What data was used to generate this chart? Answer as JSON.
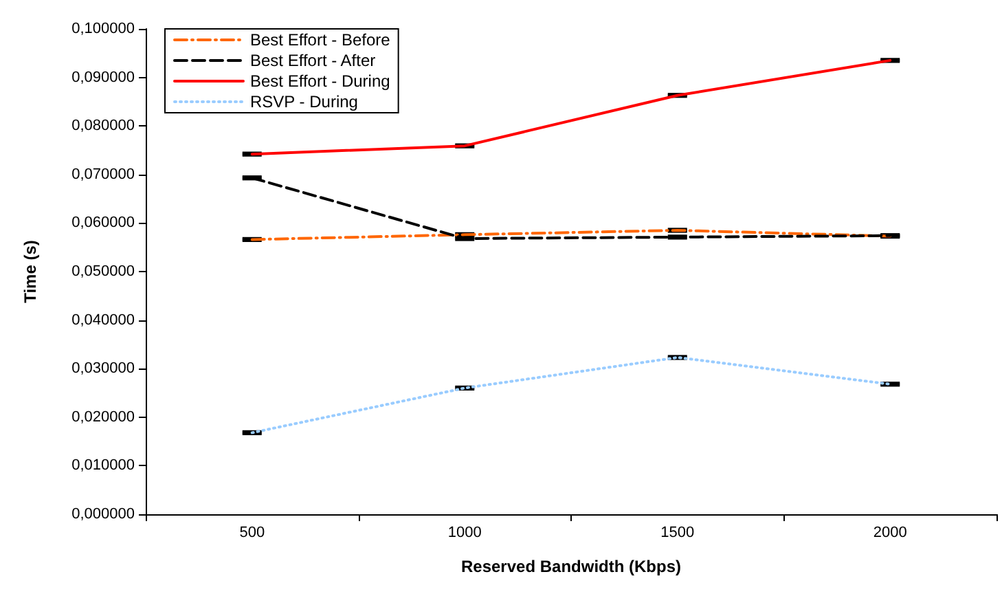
{
  "chart_data": {
    "type": "line",
    "xlabel": "Reserved Bandwidth (Kbps)",
    "ylabel": "Time (s)",
    "categories": [
      "500",
      "1000",
      "1500",
      "2000"
    ],
    "series": [
      {
        "name": "Best Effort - Before",
        "color": "#ff6600",
        "line_style": "dashdot",
        "values": [
          0.0566,
          0.0576,
          0.0585,
          0.0573
        ],
        "errors": [
          0.0003,
          0.0003,
          0.0003,
          0.0003
        ]
      },
      {
        "name": "Best Effort - After",
        "color": "#000000",
        "line_style": "dashed",
        "values": [
          0.0693,
          0.0568,
          0.0571,
          0.0574
        ],
        "errors": [
          0.0003,
          0.0003,
          0.0003,
          0.0003
        ]
      },
      {
        "name": "Best Effort - During",
        "color": "#ff0000",
        "line_style": "solid",
        "values": [
          0.0742,
          0.0759,
          0.0863,
          0.0935
        ],
        "errors": [
          0.0003,
          0.0003,
          0.0003,
          0.0003
        ]
      },
      {
        "name": "RSVP - During",
        "color": "#99ccff",
        "line_style": "dotted",
        "values": [
          0.0168,
          0.026,
          0.0323,
          0.0268
        ],
        "errors": [
          0.0003,
          0.0003,
          0.0003,
          0.0003
        ]
      }
    ],
    "ylim": [
      0,
      0.1
    ],
    "yticks": [
      {
        "value": 0,
        "label": "0,000000"
      },
      {
        "value": 0.01,
        "label": "0,010000"
      },
      {
        "value": 0.02,
        "label": "0,020000"
      },
      {
        "value": 0.03,
        "label": "0,030000"
      },
      {
        "value": 0.04,
        "label": "0,040000"
      },
      {
        "value": 0.05,
        "label": "0,050000"
      },
      {
        "value": 0.06,
        "label": "0,060000"
      },
      {
        "value": 0.07,
        "label": "0,070000"
      },
      {
        "value": 0.08,
        "label": "0,080000"
      },
      {
        "value": 0.09,
        "label": "0,090000"
      },
      {
        "value": 0.1,
        "label": "0,100000"
      }
    ],
    "grid": false,
    "legend": "top left",
    "marker": "none"
  }
}
